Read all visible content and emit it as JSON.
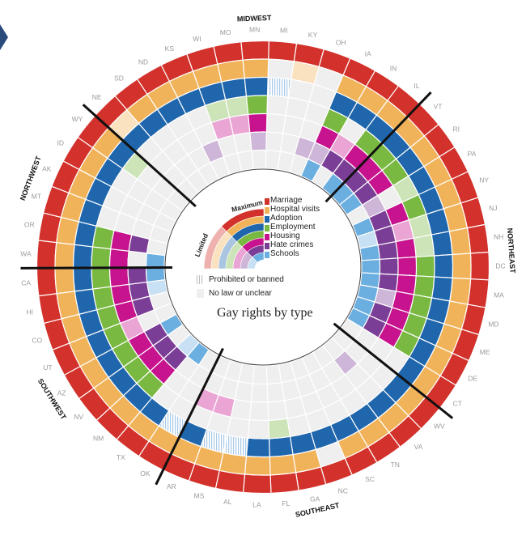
{
  "title": "Gay rights by type",
  "legend": {
    "maximum_label": "Maximum",
    "limited_label": "Limited",
    "categories": [
      "Marriage",
      "Hospital visits",
      "Adoption",
      "Employment",
      "Housing",
      "Hate crimes",
      "Schools"
    ],
    "prohibited_label": "Prohibited or banned",
    "no_law_label": "No law or unclear"
  },
  "colors": {
    "Marriage": "#d3312b",
    "Hospital visits": "#f1b35a",
    "Adoption": "#1f66ad",
    "Employment": "#79b941",
    "Housing": "#c7138d",
    "Hate crimes": "#7b3e96",
    "Schools": "#6baee0",
    "no_law": "#efefef"
  },
  "regions": [
    "MIDWEST",
    "NORTHEAST",
    "SOUTHEAST",
    "SOUTHWEST",
    "NORTHWEST"
  ],
  "chart_data": {
    "type": "heatmap",
    "title": "Gay rights by type",
    "rings": [
      "Marriage",
      "Hospital visits",
      "Adoption",
      "Employment",
      "Housing",
      "Hate crimes",
      "Schools"
    ],
    "levels": {
      "M": "maximum",
      "L": "limited",
      "P": "prohibited or banned",
      "N": "no law or unclear"
    },
    "states": [
      {
        "id": "MI",
        "region": "MIDWEST",
        "values": [
          "M",
          "N",
          "P",
          "N",
          "N",
          "N",
          "N"
        ]
      },
      {
        "id": "KY",
        "region": "MIDWEST",
        "values": [
          "M",
          "L",
          "N",
          "N",
          "N",
          "N",
          "N"
        ]
      },
      {
        "id": "OH",
        "region": "MIDWEST",
        "values": [
          "M",
          "N",
          "N",
          "N",
          "N",
          "L",
          "N"
        ]
      },
      {
        "id": "IA",
        "region": "MIDWEST",
        "values": [
          "M",
          "M",
          "M",
          "M",
          "M",
          "L",
          "M"
        ]
      },
      {
        "id": "IN",
        "region": "MIDWEST",
        "values": [
          "M",
          "M",
          "M",
          "N",
          "L",
          "M",
          "N"
        ]
      },
      {
        "id": "IL",
        "region": "MIDWEST",
        "values": [
          "M",
          "M",
          "M",
          "M",
          "M",
          "M",
          "M"
        ]
      },
      {
        "id": "VT",
        "region": "NORTHEAST",
        "values": [
          "M",
          "M",
          "M",
          "M",
          "M",
          "M",
          "M"
        ]
      },
      {
        "id": "RI",
        "region": "NORTHEAST",
        "values": [
          "M",
          "M",
          "M",
          "M",
          "M",
          "M",
          "M"
        ]
      },
      {
        "id": "PA",
        "region": "NORTHEAST",
        "values": [
          "M",
          "M",
          "M",
          "L",
          "N",
          "L",
          "N"
        ]
      },
      {
        "id": "NY",
        "region": "NORTHEAST",
        "values": [
          "M",
          "M",
          "M",
          "M",
          "M",
          "M",
          "M"
        ]
      },
      {
        "id": "NJ",
        "region": "NORTHEAST",
        "values": [
          "M",
          "M",
          "M",
          "L",
          "L",
          "M",
          "L"
        ]
      },
      {
        "id": "NH",
        "region": "NORTHEAST",
        "values": [
          "M",
          "M",
          "M",
          "L",
          "M",
          "M",
          "M"
        ]
      },
      {
        "id": "DC",
        "region": "NORTHEAST",
        "values": [
          "M",
          "M",
          "M",
          "M",
          "M",
          "M",
          "M"
        ]
      },
      {
        "id": "MA",
        "region": "NORTHEAST",
        "values": [
          "M",
          "M",
          "M",
          "M",
          "M",
          "M",
          "M"
        ]
      },
      {
        "id": "MD",
        "region": "NORTHEAST",
        "values": [
          "M",
          "M",
          "M",
          "M",
          "M",
          "L",
          "M"
        ]
      },
      {
        "id": "ME",
        "region": "NORTHEAST",
        "values": [
          "M",
          "M",
          "M",
          "M",
          "M",
          "M",
          "M"
        ]
      },
      {
        "id": "DE",
        "region": "NORTHEAST",
        "values": [
          "M",
          "M",
          "M",
          "M",
          "M",
          "M",
          "M"
        ]
      },
      {
        "id": "CT",
        "region": "NORTHEAST",
        "values": [
          "M",
          "M",
          "M",
          "N",
          "N",
          "N",
          "N"
        ]
      },
      {
        "id": "WV",
        "region": "SOUTHEAST",
        "values": [
          "M",
          "M",
          "M",
          "N",
          "N",
          "N",
          "N"
        ]
      },
      {
        "id": "VA",
        "region": "SOUTHEAST",
        "values": [
          "M",
          "M",
          "M",
          "N",
          "N",
          "L",
          "N"
        ]
      },
      {
        "id": "TN",
        "region": "SOUTHEAST",
        "values": [
          "M",
          "M",
          "M",
          "N",
          "N",
          "N",
          "N"
        ]
      },
      {
        "id": "SC",
        "region": "SOUTHEAST",
        "values": [
          "M",
          "M",
          "M",
          "N",
          "N",
          "N",
          "N"
        ]
      },
      {
        "id": "NC",
        "region": "SOUTHEAST",
        "values": [
          "M",
          "N",
          "M",
          "N",
          "N",
          "N",
          "N"
        ]
      },
      {
        "id": "GA",
        "region": "SOUTHEAST",
        "values": [
          "M",
          "M",
          "M",
          "N",
          "N",
          "N",
          "N"
        ]
      },
      {
        "id": "FL",
        "region": "SOUTHEAST",
        "values": [
          "M",
          "M",
          "M",
          "L",
          "N",
          "N",
          "N"
        ]
      },
      {
        "id": "LA",
        "region": "SOUTHEAST",
        "values": [
          "M",
          "M",
          "M",
          "N",
          "N",
          "N",
          "N"
        ]
      },
      {
        "id": "AL",
        "region": "SOUTHEAST",
        "values": [
          "M",
          "M",
          "P",
          "N",
          "N",
          "N",
          "N"
        ]
      },
      {
        "id": "MS",
        "region": "SOUTHEAST",
        "values": [
          "M",
          "M",
          "P",
          "N",
          "L",
          "N",
          "N"
        ]
      },
      {
        "id": "AR",
        "region": "SOUTHEAST",
        "values": [
          "M",
          "M",
          "M",
          "N",
          "L",
          "N",
          "N"
        ]
      },
      {
        "id": "OK",
        "region": "SOUTHWEST",
        "values": [
          "M",
          "M",
          "P",
          "N",
          "N",
          "N",
          "N"
        ]
      },
      {
        "id": "TX",
        "region": "SOUTHWEST",
        "values": [
          "M",
          "M",
          "M",
          "N",
          "N",
          "N",
          "M"
        ]
      },
      {
        "id": "NM",
        "region": "SOUTHWEST",
        "values": [
          "M",
          "M",
          "M",
          "M",
          "M",
          "M",
          "L"
        ]
      },
      {
        "id": "NV",
        "region": "SOUTHWEST",
        "values": [
          "M",
          "M",
          "M",
          "M",
          "M",
          "M",
          "N"
        ]
      },
      {
        "id": "AZ",
        "region": "SOUTHWEST",
        "values": [
          "M",
          "M",
          "M",
          "M",
          "M",
          "M",
          "M"
        ]
      },
      {
        "id": "UT",
        "region": "SOUTHWEST",
        "values": [
          "M",
          "M",
          "M",
          "M",
          "L",
          "N",
          "N"
        ]
      },
      {
        "id": "CO",
        "region": "SOUTHWEST",
        "values": [
          "M",
          "M",
          "M",
          "M",
          "M",
          "M",
          "N"
        ]
      },
      {
        "id": "HI",
        "region": "SOUTHWEST",
        "values": [
          "M",
          "M",
          "M",
          "M",
          "M",
          "M",
          "L"
        ]
      },
      {
        "id": "CA",
        "region": "SOUTHWEST",
        "values": [
          "M",
          "M",
          "M",
          "M",
          "M",
          "M",
          "M"
        ]
      },
      {
        "id": "WA",
        "region": "NORTHWEST",
        "values": [
          "M",
          "M",
          "M",
          "M",
          "M",
          "N",
          "M"
        ]
      },
      {
        "id": "OR",
        "region": "NORTHWEST",
        "values": [
          "M",
          "M",
          "M",
          "M",
          "M",
          "M",
          "N"
        ]
      },
      {
        "id": "MT",
        "region": "NORTHWEST",
        "values": [
          "M",
          "M",
          "M",
          "N",
          "N",
          "N",
          "N"
        ]
      },
      {
        "id": "AK",
        "region": "NORTHWEST",
        "values": [
          "M",
          "M",
          "M",
          "N",
          "N",
          "N",
          "N"
        ]
      },
      {
        "id": "ID",
        "region": "NORTHWEST",
        "values": [
          "M",
          "M",
          "M",
          "N",
          "N",
          "N",
          "N"
        ]
      },
      {
        "id": "WY",
        "region": "NORTHWEST",
        "values": [
          "M",
          "M",
          "M",
          "L",
          "N",
          "N",
          "N"
        ]
      },
      {
        "id": "NE",
        "region": "MIDWEST",
        "values": [
          "M",
          "L",
          "M",
          "N",
          "N",
          "N",
          "N"
        ]
      },
      {
        "id": "SD",
        "region": "MIDWEST",
        "values": [
          "M",
          "M",
          "M",
          "N",
          "N",
          "N",
          "N"
        ]
      },
      {
        "id": "ND",
        "region": "MIDWEST",
        "values": [
          "M",
          "M",
          "M",
          "N",
          "N",
          "N",
          "N"
        ]
      },
      {
        "id": "KS",
        "region": "MIDWEST",
        "values": [
          "M",
          "M",
          "M",
          "N",
          "N",
          "L",
          "N"
        ]
      },
      {
        "id": "WI",
        "region": "MIDWEST",
        "values": [
          "M",
          "M",
          "M",
          "L",
          "L",
          "N",
          "N"
        ]
      },
      {
        "id": "MO",
        "region": "MIDWEST",
        "values": [
          "M",
          "M",
          "M",
          "L",
          "L",
          "N",
          "N"
        ]
      },
      {
        "id": "MN",
        "region": "MIDWEST",
        "values": [
          "M",
          "M",
          "M",
          "M",
          "M",
          "L",
          "N"
        ]
      }
    ]
  }
}
